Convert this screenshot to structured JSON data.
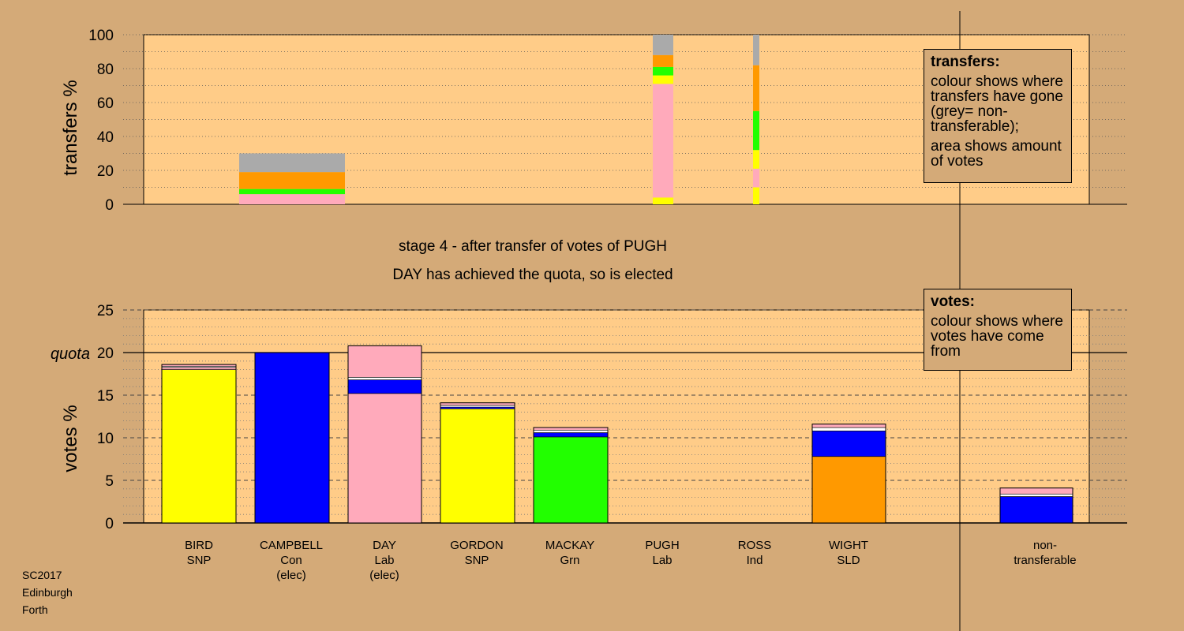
{
  "chart_data": [
    {
      "type": "bar",
      "stacked": true,
      "ylabel": "transfers %",
      "ylim": [
        0,
        100
      ],
      "yticks": [
        0,
        20,
        40,
        60,
        80,
        100
      ],
      "grid": "dotted",
      "note": "stacked transfer shares for Ross and Pugh bars",
      "series": [
        {
          "category": "CAMPBELL",
          "segments": [
            {
              "color": "#ffaabb",
              "value": 6
            },
            {
              "color": "#22ff00",
              "value": 3
            },
            {
              "color": "#ff9900",
              "value": 10
            },
            {
              "color": "#aaaaaa",
              "value": 11
            }
          ]
        },
        {
          "category": "PUGH",
          "segments": [
            {
              "color": "#ffff00",
              "value": 4
            },
            {
              "color": "#ffaabb",
              "value": 67
            },
            {
              "color": "#ffff00",
              "value": 5
            },
            {
              "color": "#22ff00",
              "value": 5
            },
            {
              "color": "#ff9900",
              "value": 7
            },
            {
              "color": "#aaaaaa",
              "value": 12
            }
          ]
        },
        {
          "category": "ROSS",
          "segments": [
            {
              "color": "#ffff00",
              "value": 10
            },
            {
              "color": "#ffaabb",
              "value": 11
            },
            {
              "color": "#ffff00",
              "value": 11
            },
            {
              "color": "#22ff00",
              "value": 23
            },
            {
              "color": "#ff9900",
              "value": 27
            },
            {
              "color": "#aaaaaa",
              "value": 18
            }
          ]
        }
      ]
    },
    {
      "type": "bar",
      "stacked": true,
      "ylabel": "votes %",
      "ylim": [
        0,
        25
      ],
      "yticks": [
        0,
        5,
        10,
        15,
        20,
        25
      ],
      "quota": 20,
      "quota_label": "quota",
      "categories": [
        "BIRD SNP",
        "CAMPBELL Con (elec)",
        "DAY Lab (elec)",
        "GORDON SNP",
        "MACKAY Grn",
        "PUGH Lab",
        "ROSS Ind",
        "WIGHT SLD",
        "non-transferable"
      ],
      "series": [
        {
          "category": "BIRD",
          "segments": [
            {
              "color": "#ffff00",
              "value": 18.0
            },
            {
              "color": "#ffaabb",
              "value": 0.25
            },
            {
              "color": "#ffffff",
              "value": 0.15
            },
            {
              "color": "#ffaabb",
              "value": 0.2
            }
          ]
        },
        {
          "category": "CAMPBELL",
          "segments": [
            {
              "color": "#0000ff",
              "value": 20.0
            }
          ]
        },
        {
          "category": "DAY",
          "segments": [
            {
              "color": "#ffaabb",
              "value": 15.2
            },
            {
              "color": "#0000ff",
              "value": 1.6
            },
            {
              "color": "#ffffff",
              "value": 0.3
            },
            {
              "color": "#ffaabb",
              "value": 3.7
            }
          ]
        },
        {
          "category": "GORDON",
          "segments": [
            {
              "color": "#ffff00",
              "value": 13.4
            },
            {
              "color": "#0000ff",
              "value": 0.2
            },
            {
              "color": "#ffffff",
              "value": 0.2
            },
            {
              "color": "#ffaabb",
              "value": 0.3
            }
          ]
        },
        {
          "category": "MACKAY",
          "segments": [
            {
              "color": "#22ff00",
              "value": 10.1
            },
            {
              "color": "#0000ff",
              "value": 0.5
            },
            {
              "color": "#ffffff",
              "value": 0.3
            },
            {
              "color": "#ffaabb",
              "value": 0.3
            }
          ]
        },
        {
          "category": "PUGH",
          "segments": [
            {
              "color": "#ffaabb",
              "value": 0.0
            }
          ]
        },
        {
          "category": "ROSS",
          "segments": [
            {
              "color": "#ffaabb",
              "value": 0.0
            }
          ]
        },
        {
          "category": "WIGHT",
          "segments": [
            {
              "color": "#ff9900",
              "value": 7.8
            },
            {
              "color": "#0000ff",
              "value": 3.0
            },
            {
              "color": "#ffffff",
              "value": 0.4
            },
            {
              "color": "#ffaabb",
              "value": 0.4
            }
          ]
        },
        {
          "category": "non-transferable",
          "segments": [
            {
              "color": "#0000ff",
              "value": 3.1
            },
            {
              "color": "#ffffff",
              "value": 0.3
            },
            {
              "color": "#ffaabb",
              "value": 0.7
            }
          ]
        }
      ]
    }
  ],
  "text": {
    "top_ylabel": "transfers %",
    "bottom_ylabel": "votes %",
    "quota_label": "quota",
    "stage_line": "stage 4 - after transfer of votes of PUGH",
    "elected_line": "DAY has achieved the quota, so is elected",
    "transfers_legend": {
      "title": "transfers:",
      "p1": "colour shows where transfers have gone (grey= non-transferable);",
      "p2": "area shows amount of votes"
    },
    "votes_legend": {
      "title": "votes:",
      "p1": "colour shows where votes have come from"
    },
    "candidates": [
      {
        "name": "BIRD",
        "party": "SNP",
        "status": ""
      },
      {
        "name": "CAMPBELL",
        "party": "Con",
        "status": "(elec)"
      },
      {
        "name": "DAY",
        "party": "Lab",
        "status": "(elec)"
      },
      {
        "name": "GORDON",
        "party": "SNP",
        "status": ""
      },
      {
        "name": "MACKAY",
        "party": "Grn",
        "status": ""
      },
      {
        "name": "PUGH",
        "party": "Lab",
        "status": ""
      },
      {
        "name": "ROSS",
        "party": "Ind",
        "status": ""
      },
      {
        "name": "WIGHT",
        "party": "SLD",
        "status": ""
      }
    ],
    "nontransferable_label_1": "non-",
    "nontransferable_label_2": "transferable",
    "footer": [
      "SC2017",
      "Edinburgh",
      "Forth"
    ]
  }
}
